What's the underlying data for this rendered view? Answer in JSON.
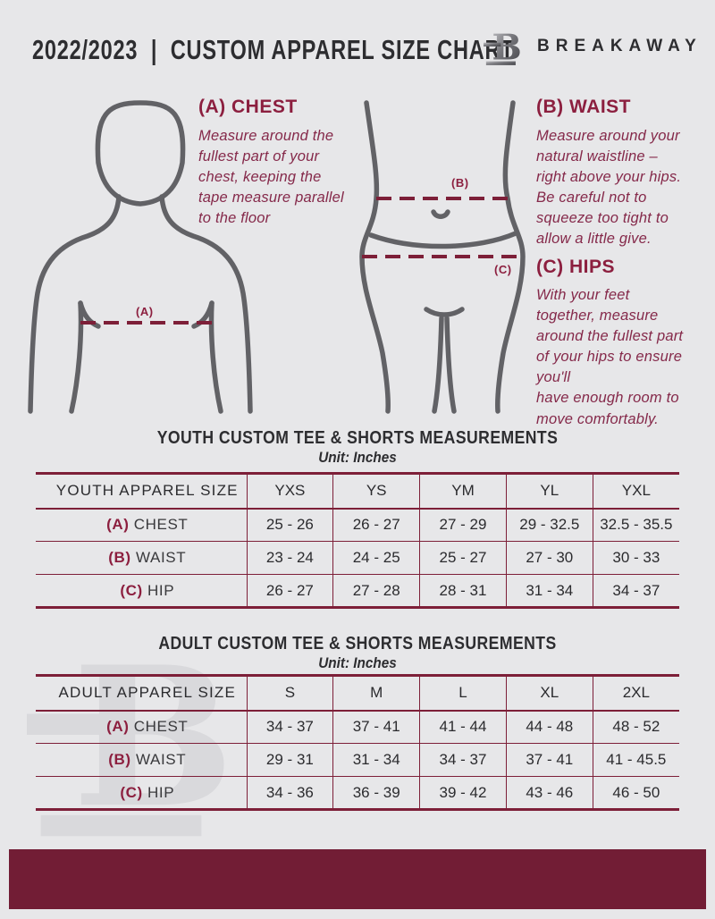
{
  "header": {
    "title": "2022/2023  |  CUSTOM APPAREL SIZE CHART",
    "brand": "BREAKAWAY",
    "logo_letter": "B"
  },
  "colors": {
    "background": "#e7e7e9",
    "maroon_accent": "#7d1f38",
    "footer": "#721d35",
    "figure_gray": "#626266"
  },
  "guide": {
    "markers": {
      "a": "(A)",
      "b": "(B)",
      "c": "(C)"
    },
    "sections": [
      {
        "heading": "(A) CHEST",
        "body": "Measure around the\nfullest part of your\nchest, keeping the\ntape measure parallel\nto the floor"
      },
      {
        "heading": "(B) WAIST",
        "body": "Measure around your\nnatural waistline –\nright above your hips.\nBe careful not to\nsqueeze too tight to\nallow a little give."
      },
      {
        "heading": "(C) HIPS",
        "body": "With your feet\ntogether, measure\naround the fullest part\nof your hips to ensure\nyou'll\nhave enough room to\nmove comfortably."
      }
    ]
  },
  "tables": [
    {
      "title": "YOUTH CUSTOM TEE & SHORTS MEASUREMENTS",
      "unit": "Unit: Inches",
      "header": [
        "YOUTH APPAREL SIZE",
        "YXS",
        "YS",
        "YM",
        "YL",
        "YXL"
      ],
      "rows": [
        {
          "label_prefix": "(A)",
          "label": "CHEST",
          "values": [
            "25 - 26",
            "26 - 27",
            "27 - 29",
            "29 - 32.5",
            "32.5 - 35.5"
          ]
        },
        {
          "label_prefix": "(B)",
          "label": "WAIST",
          "values": [
            "23 - 24",
            "24 - 25",
            "25 - 27",
            "27 - 30",
            "30 - 33"
          ]
        },
        {
          "label_prefix": "(C)",
          "label": "HIP",
          "values": [
            "26 - 27",
            "27 - 28",
            "28 - 31",
            "31 - 34",
            "34 - 37"
          ]
        }
      ]
    },
    {
      "title": "ADULT CUSTOM TEE & SHORTS MEASUREMENTS",
      "unit": "Unit: Inches",
      "header": [
        "ADULT APPAREL SIZE",
        "S",
        "M",
        "L",
        "XL",
        "2XL"
      ],
      "rows": [
        {
          "label_prefix": "(A)",
          "label": "CHEST",
          "values": [
            "34 - 37",
            "37 - 41",
            "41 - 44",
            "44 - 48",
            "48 - 52"
          ]
        },
        {
          "label_prefix": "(B)",
          "label": "WAIST",
          "values": [
            "29 - 31",
            "31 - 34",
            "34 - 37",
            "37 - 41",
            "41 - 45.5"
          ]
        },
        {
          "label_prefix": "(C)",
          "label": "HIP",
          "values": [
            "34 - 36",
            "36 - 39",
            "39 - 42",
            "43 - 46",
            "46 - 50"
          ]
        }
      ]
    }
  ]
}
